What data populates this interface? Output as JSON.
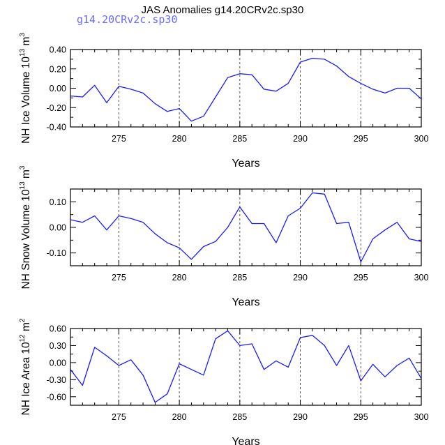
{
  "figure_title": "JAS Anomalies g14.20CRv2c.sp30",
  "legend_label": "g14.20CRv2c.sp30",
  "colors": {
    "series": "#1a1aff",
    "legend": "#6a6aff",
    "axis": "#000000",
    "grid": "#555555"
  },
  "chart_data": [
    {
      "type": "line",
      "title": "",
      "xlabel": "Years",
      "ylabel_main": "NH Ice Volume 10",
      "ylabel_exp": "13",
      "ylabel_unit": "m",
      "ylabel_unit_exp": "3",
      "xlim": [
        271,
        300
      ],
      "ylim": [
        -0.4,
        0.4
      ],
      "x_ticks": [
        275,
        280,
        285,
        290,
        295,
        300
      ],
      "x_tick_labels": [
        "275",
        "280",
        "285",
        "290",
        "295",
        "300"
      ],
      "y_ticks": [
        -0.4,
        -0.2,
        0.0,
        0.2,
        0.4
      ],
      "y_tick_labels": [
        "-0.40",
        "-0.20",
        "0.00",
        "0.20",
        "0.40"
      ],
      "grid": "x dashed at major ticks",
      "series": [
        {
          "name": "g14.20CRv2c.sp30",
          "x": [
            271,
            272,
            273,
            274,
            275,
            276,
            277,
            278,
            279,
            280,
            281,
            282,
            283,
            284,
            285,
            286,
            287,
            288,
            289,
            290,
            291,
            292,
            293,
            294,
            295,
            296,
            297,
            298,
            299,
            300
          ],
          "values": [
            -0.08,
            -0.09,
            0.03,
            -0.15,
            0.02,
            -0.01,
            -0.05,
            -0.16,
            -0.24,
            -0.21,
            -0.34,
            -0.29,
            -0.09,
            0.11,
            0.15,
            0.14,
            -0.01,
            -0.03,
            0.05,
            0.27,
            0.31,
            0.3,
            0.23,
            0.12,
            0.05,
            -0.01,
            -0.05,
            0.0,
            0.0,
            -0.11
          ]
        }
      ]
    },
    {
      "type": "line",
      "title": "",
      "xlabel": "Years",
      "ylabel_main": "NH Snow Volume 10",
      "ylabel_exp": "13",
      "ylabel_unit": "m",
      "ylabel_unit_exp": "3",
      "xlim": [
        271,
        300
      ],
      "ylim": [
        -0.15,
        0.15
      ],
      "x_ticks": [
        275,
        280,
        285,
        290,
        295,
        300
      ],
      "x_tick_labels": [
        "275",
        "280",
        "285",
        "290",
        "295",
        "300"
      ],
      "y_ticks": [
        -0.1,
        0.0,
        0.1
      ],
      "y_tick_labels": [
        "-0.10",
        "0.00",
        "0.10"
      ],
      "grid": "x dashed at major ticks",
      "series": [
        {
          "name": "g14.20CRv2c.sp30",
          "x": [
            271,
            272,
            273,
            274,
            275,
            276,
            277,
            278,
            279,
            280,
            281,
            282,
            283,
            284,
            285,
            286,
            287,
            288,
            289,
            290,
            291,
            292,
            293,
            294,
            295,
            296,
            297,
            298,
            299,
            300
          ],
          "values": [
            0.03,
            0.02,
            0.045,
            -0.01,
            0.045,
            0.035,
            0.02,
            -0.025,
            -0.06,
            -0.08,
            -0.125,
            -0.075,
            -0.055,
            0.0,
            0.08,
            0.015,
            0.015,
            -0.06,
            0.045,
            0.075,
            0.135,
            0.13,
            0.015,
            0.02,
            -0.135,
            -0.045,
            -0.01,
            0.02,
            -0.045,
            -0.055
          ]
        }
      ]
    },
    {
      "type": "line",
      "title": "",
      "xlabel": "Years",
      "ylabel_main": "NH Ice Area 10",
      "ylabel_exp": "12",
      "ylabel_unit": "m",
      "ylabel_unit_exp": "2",
      "xlim": [
        271,
        300
      ],
      "ylim": [
        -0.75,
        0.6
      ],
      "x_ticks": [
        275,
        280,
        285,
        290,
        295,
        300
      ],
      "x_tick_labels": [
        "275",
        "280",
        "285",
        "290",
        "295",
        "300"
      ],
      "y_ticks": [
        -0.6,
        -0.3,
        0.0,
        0.3,
        0.6
      ],
      "y_tick_labels": [
        "-0.60",
        "-0.30",
        "0.00",
        "0.30",
        "0.60"
      ],
      "grid": "x dashed at major ticks",
      "series": [
        {
          "name": "g14.20CRv2c.sp30",
          "x": [
            271,
            272,
            273,
            274,
            275,
            276,
            277,
            278,
            279,
            280,
            281,
            282,
            283,
            284,
            285,
            286,
            287,
            288,
            289,
            290,
            291,
            292,
            293,
            294,
            295,
            296,
            297,
            298,
            299,
            300
          ],
          "values": [
            -0.12,
            -0.4,
            0.27,
            0.12,
            -0.05,
            0.05,
            -0.22,
            -0.7,
            -0.55,
            -0.02,
            -0.12,
            -0.22,
            0.42,
            0.56,
            0.3,
            0.33,
            -0.12,
            0.03,
            -0.08,
            0.44,
            0.48,
            0.3,
            -0.05,
            0.3,
            -0.32,
            -0.03,
            -0.25,
            -0.05,
            0.08,
            -0.28
          ]
        }
      ]
    }
  ]
}
